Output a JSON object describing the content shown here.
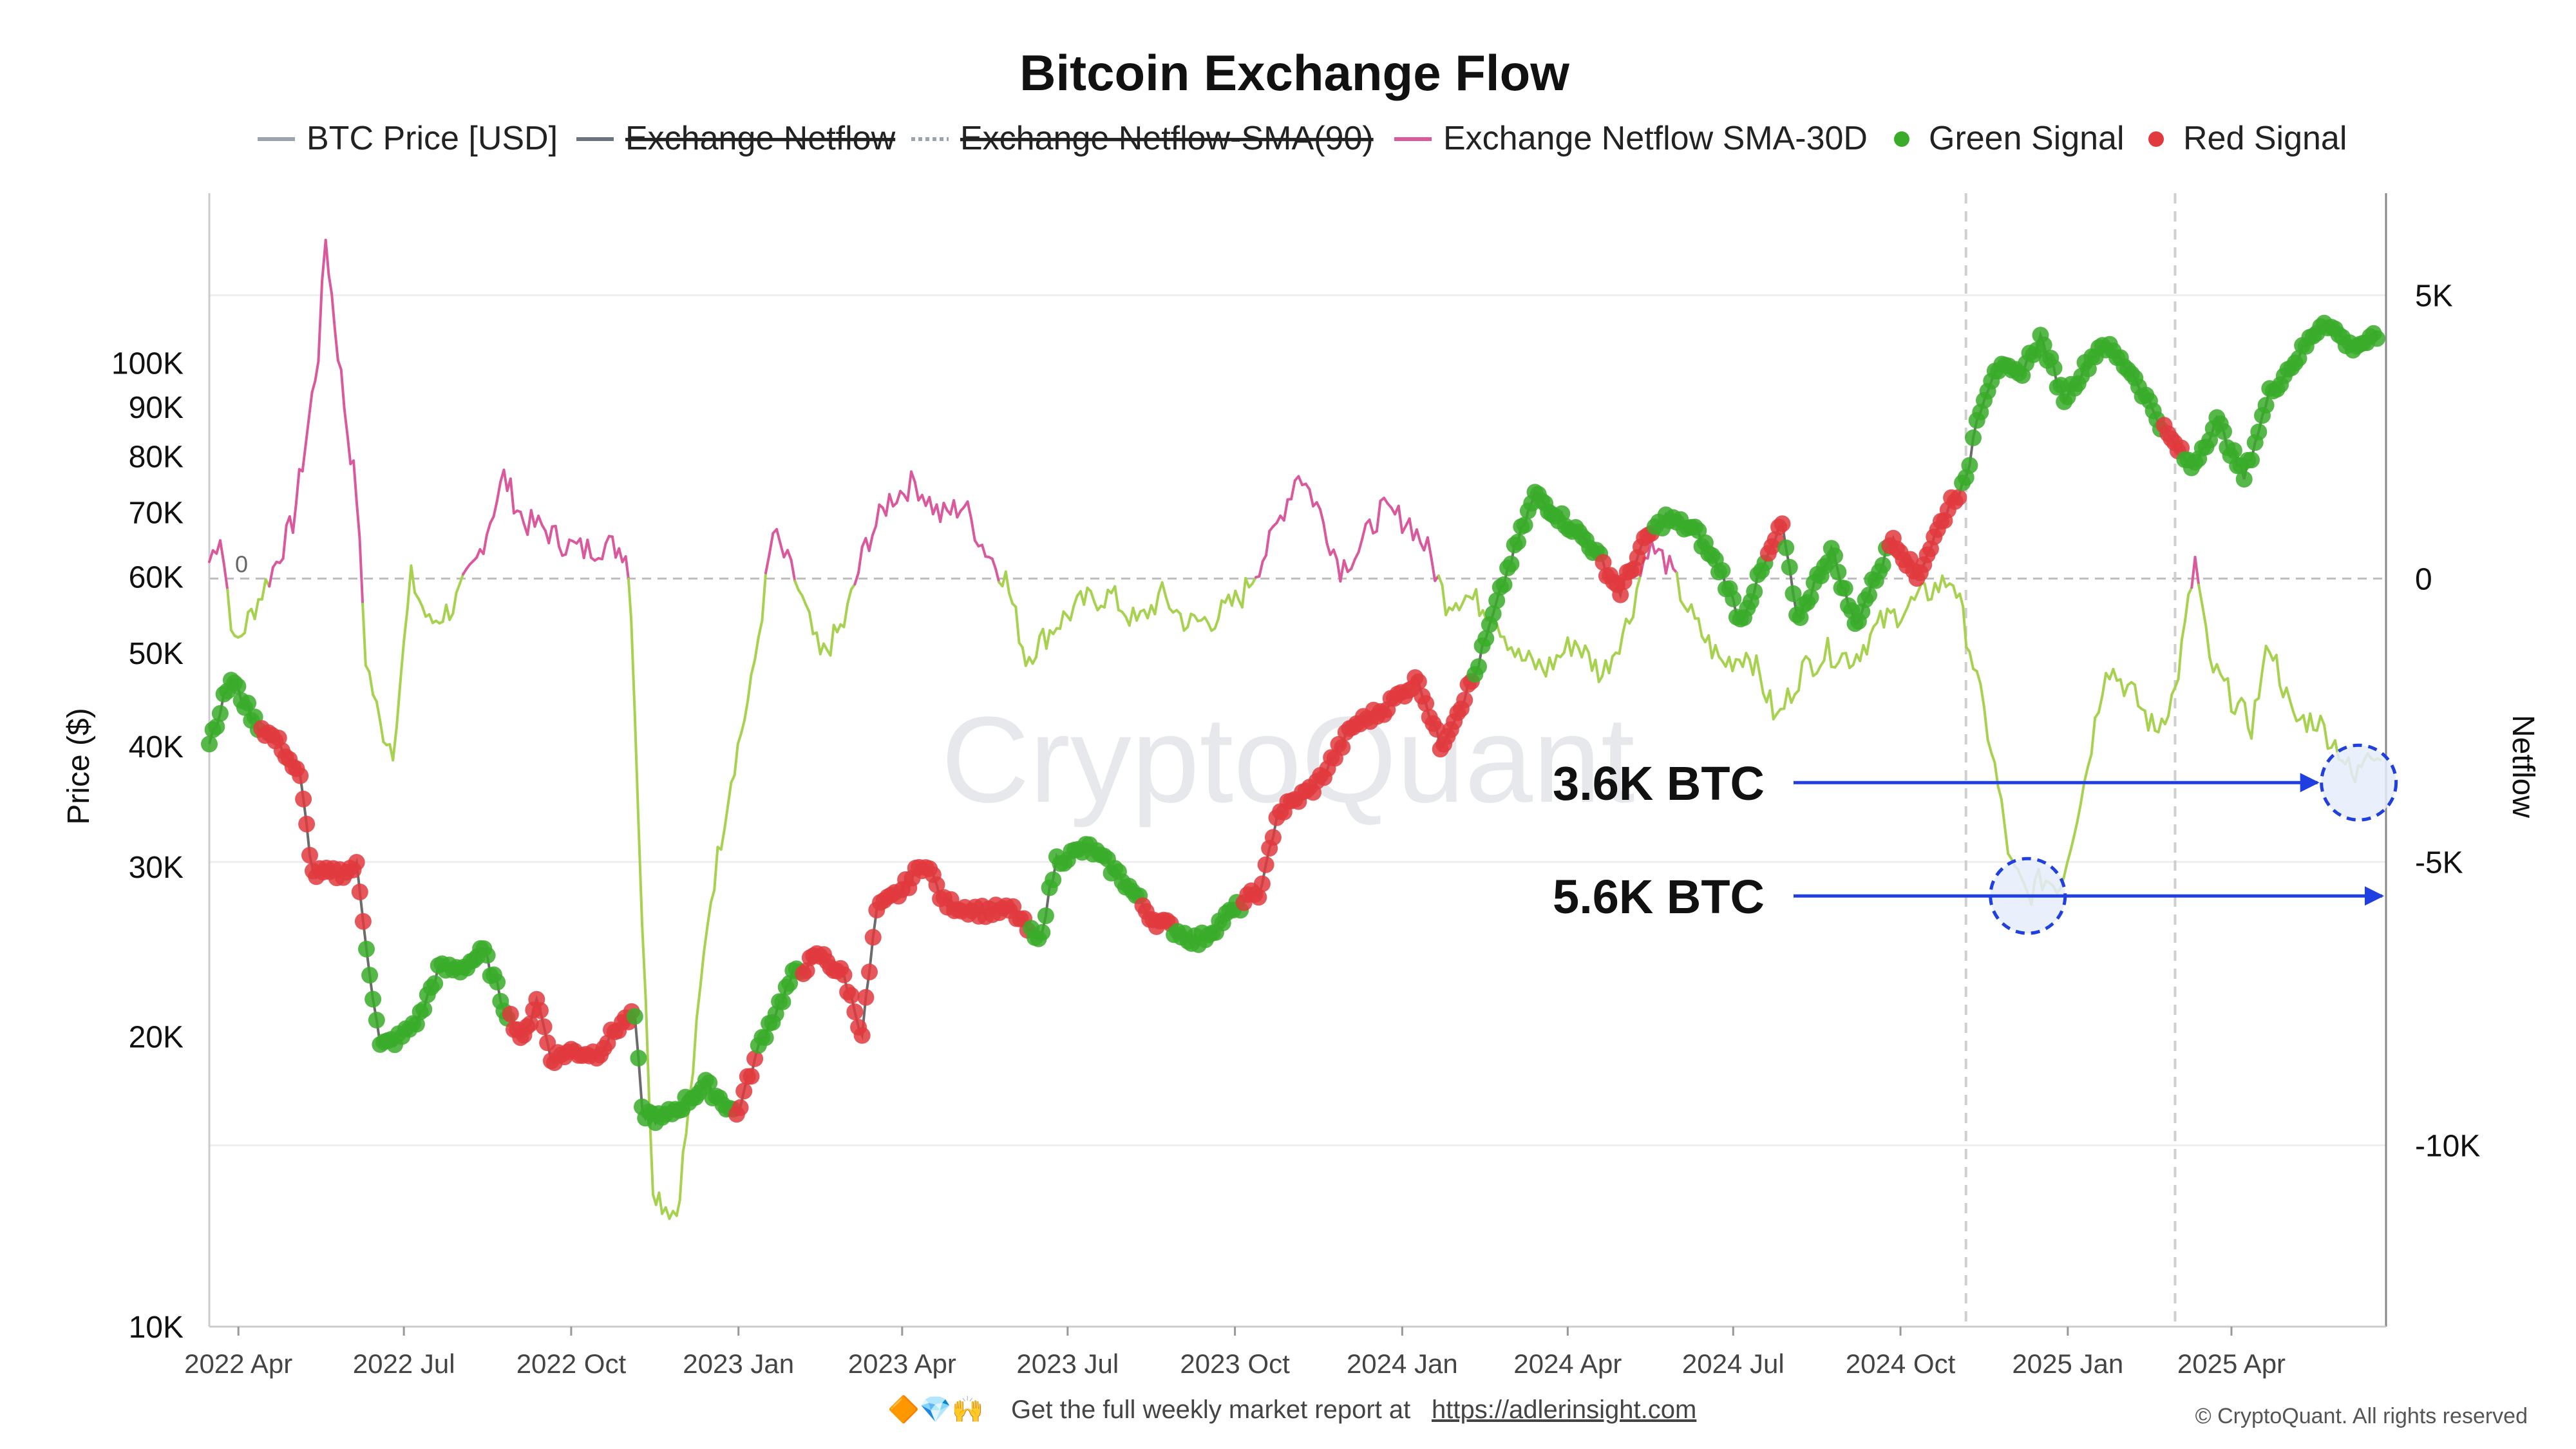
{
  "chart_data": {
    "type": "line",
    "title": "Bitcoin Exchange Flow",
    "watermark": "CryptoQuant",
    "legend": [
      {
        "label": "BTC Price [USD]",
        "color": "#9ca3af",
        "marker": "line",
        "hidden": false
      },
      {
        "label": "Exchange Netflow",
        "color": "#6b7280",
        "marker": "line",
        "hidden": true
      },
      {
        "label": "Exchange Netflow-SMA(90)",
        "color": "#9ca3af",
        "marker": "dashed",
        "hidden": true
      },
      {
        "label": "Exchange Netflow SMA-30D",
        "color": "#d9599c",
        "marker": "line",
        "hidden": false
      },
      {
        "label": "Green Signal",
        "color": "#3aab2a",
        "marker": "dot",
        "hidden": false
      },
      {
        "label": "Red Signal",
        "color": "#e0393e",
        "marker": "dot",
        "hidden": false
      }
    ],
    "xlim": [
      "2022-03-16",
      "2025-06-25"
    ],
    "x_ticks": [
      {
        "date": "2022-04-01",
        "label": "2022 Apr"
      },
      {
        "date": "2022-07-01",
        "label": "2022 Jul"
      },
      {
        "date": "2022-10-01",
        "label": "2022 Oct"
      },
      {
        "date": "2023-01-01",
        "label": "2023 Jan"
      },
      {
        "date": "2023-04-01",
        "label": "2023 Apr"
      },
      {
        "date": "2023-07-01",
        "label": "2023 Jul"
      },
      {
        "date": "2023-10-01",
        "label": "2023 Oct"
      },
      {
        "date": "2024-01-01",
        "label": "2024 Jan"
      },
      {
        "date": "2024-04-01",
        "label": "2024 Apr"
      },
      {
        "date": "2024-07-01",
        "label": "2024 Jul"
      },
      {
        "date": "2024-10-01",
        "label": "2024 Oct"
      },
      {
        "date": "2025-01-01",
        "label": "2025 Jan"
      },
      {
        "date": "2025-04-01",
        "label": "2025 Apr"
      }
    ],
    "y_left": {
      "label": "Price ($)",
      "scale": "log",
      "ylim": [
        10000,
        150000
      ],
      "ticks": [
        {
          "value": 10000,
          "label": "10K"
        },
        {
          "value": 20000,
          "label": "20K"
        },
        {
          "value": 30000,
          "label": "30K"
        },
        {
          "value": 40000,
          "label": "40K"
        },
        {
          "value": 50000,
          "label": "50K"
        },
        {
          "value": 60000,
          "label": "60K"
        },
        {
          "value": 70000,
          "label": "70K"
        },
        {
          "value": 80000,
          "label": "80K"
        },
        {
          "value": 90000,
          "label": "90K"
        },
        {
          "value": 100000,
          "label": "100K"
        }
      ]
    },
    "y_right": {
      "label": "Netflow",
      "scale": "linear",
      "ylim": [
        -13200,
        6800
      ],
      "ticks": [
        {
          "value": 5000,
          "label": "5K"
        },
        {
          "value": 0,
          "label": "0"
        },
        {
          "value": -5000,
          "label": "-5K"
        },
        {
          "value": -10000,
          "label": "-10K"
        }
      ],
      "zero_line_label": "0"
    },
    "series": [
      {
        "name": "BTC Price [USD]",
        "axis": "left",
        "points": [
          [
            "2022-03-16",
            40500
          ],
          [
            "2022-03-28",
            47000
          ],
          [
            "2022-04-10",
            42500
          ],
          [
            "2022-04-25",
            40000
          ],
          [
            "2022-05-05",
            37000
          ],
          [
            "2022-05-12",
            29500
          ],
          [
            "2022-05-25",
            29500
          ],
          [
            "2022-06-05",
            30000
          ],
          [
            "2022-06-14",
            22000
          ],
          [
            "2022-06-18",
            19500
          ],
          [
            "2022-06-30",
            20000
          ],
          [
            "2022-07-10",
            21000
          ],
          [
            "2022-07-20",
            23500
          ],
          [
            "2022-08-01",
            23500
          ],
          [
            "2022-08-14",
            24500
          ],
          [
            "2022-08-25",
            21500
          ],
          [
            "2022-09-05",
            19800
          ],
          [
            "2022-09-12",
            22000
          ],
          [
            "2022-09-20",
            19000
          ],
          [
            "2022-10-01",
            19300
          ],
          [
            "2022-10-15",
            19200
          ],
          [
            "2022-10-29",
            20700
          ],
          [
            "2022-11-05",
            21000
          ],
          [
            "2022-11-09",
            16700
          ],
          [
            "2022-11-20",
            16400
          ],
          [
            "2022-12-01",
            17000
          ],
          [
            "2022-12-14",
            17800
          ],
          [
            "2022-12-31",
            16600
          ],
          [
            "2023-01-14",
            19900
          ],
          [
            "2023-01-31",
            23100
          ],
          [
            "2023-02-15",
            24300
          ],
          [
            "2023-02-28",
            23100
          ],
          [
            "2023-03-10",
            20200
          ],
          [
            "2023-03-18",
            27000
          ],
          [
            "2023-04-01",
            28400
          ],
          [
            "2023-04-14",
            30400
          ],
          [
            "2023-04-24",
            27500
          ],
          [
            "2023-05-15",
            27000
          ],
          [
            "2023-06-01",
            27000
          ],
          [
            "2023-06-15",
            25000
          ],
          [
            "2023-06-25",
            30500
          ],
          [
            "2023-07-13",
            31400
          ],
          [
            "2023-07-31",
            29200
          ],
          [
            "2023-08-17",
            26500
          ],
          [
            "2023-09-11",
            25100
          ],
          [
            "2023-09-30",
            27000
          ],
          [
            "2023-10-16",
            28500
          ],
          [
            "2023-10-24",
            34000
          ],
          [
            "2023-11-15",
            36500
          ],
          [
            "2023-12-05",
            42000
          ],
          [
            "2023-12-20",
            43500
          ],
          [
            "2024-01-10",
            47000
          ],
          [
            "2024-01-22",
            40000
          ],
          [
            "2024-02-10",
            47500
          ],
          [
            "2024-02-28",
            61000
          ],
          [
            "2024-03-14",
            73000
          ],
          [
            "2024-03-25",
            70000
          ],
          [
            "2024-04-13",
            65000
          ],
          [
            "2024-04-30",
            58000
          ],
          [
            "2024-05-15",
            66000
          ],
          [
            "2024-05-25",
            69000
          ],
          [
            "2024-06-10",
            67000
          ],
          [
            "2024-06-25",
            60500
          ],
          [
            "2024-07-05",
            54000
          ],
          [
            "2024-07-28",
            68000
          ],
          [
            "2024-08-05",
            54000
          ],
          [
            "2024-08-24",
            64000
          ],
          [
            "2024-09-06",
            53500
          ],
          [
            "2024-09-27",
            66000
          ],
          [
            "2024-10-10",
            60000
          ],
          [
            "2024-10-29",
            72000
          ],
          [
            "2024-11-06",
            75000
          ],
          [
            "2024-11-12",
            88000
          ],
          [
            "2024-11-22",
            99000
          ],
          [
            "2024-12-05",
            97000
          ],
          [
            "2024-12-17",
            106000
          ],
          [
            "2024-12-30",
            92000
          ],
          [
            "2025-01-20",
            105000
          ],
          [
            "2025-02-05",
            98000
          ],
          [
            "2025-02-25",
            84000
          ],
          [
            "2025-03-10",
            78000
          ],
          [
            "2025-03-24",
            87000
          ],
          [
            "2025-04-08",
            76000
          ],
          [
            "2025-04-22",
            93000
          ],
          [
            "2025-05-10",
            103000
          ],
          [
            "2025-05-22",
            111000
          ],
          [
            "2025-06-05",
            104000
          ],
          [
            "2025-06-20",
            106000
          ]
        ]
      },
      {
        "name": "Exchange Netflow SMA-30D",
        "axis": "right",
        "points": [
          [
            "2022-03-16",
            300
          ],
          [
            "2022-03-22",
            800
          ],
          [
            "2022-03-30",
            -1200
          ],
          [
            "2022-04-10",
            -500
          ],
          [
            "2022-04-22",
            300
          ],
          [
            "2022-05-01",
            1000
          ],
          [
            "2022-05-08",
            2400
          ],
          [
            "2022-05-15",
            4000
          ],
          [
            "2022-05-19",
            6000
          ],
          [
            "2022-05-24",
            4500
          ],
          [
            "2022-05-31",
            2600
          ],
          [
            "2022-06-05",
            1500
          ],
          [
            "2022-06-10",
            -1400
          ],
          [
            "2022-06-18",
            -2600
          ],
          [
            "2022-06-25",
            -3000
          ],
          [
            "2022-07-05",
            0
          ],
          [
            "2022-07-15",
            -800
          ],
          [
            "2022-07-28",
            -500
          ],
          [
            "2022-08-10",
            300
          ],
          [
            "2022-08-25",
            1800
          ],
          [
            "2022-09-05",
            1000
          ],
          [
            "2022-09-15",
            900
          ],
          [
            "2022-09-28",
            600
          ],
          [
            "2022-10-08",
            500
          ],
          [
            "2022-10-20",
            600
          ],
          [
            "2022-10-31",
            500
          ],
          [
            "2022-11-03",
            -500
          ],
          [
            "2022-11-09",
            -6000
          ],
          [
            "2022-11-15",
            -10700
          ],
          [
            "2022-11-20",
            -11000
          ],
          [
            "2022-11-28",
            -11200
          ],
          [
            "2022-12-05",
            -9300
          ],
          [
            "2022-12-15",
            -6000
          ],
          [
            "2022-12-28",
            -3500
          ],
          [
            "2023-01-08",
            -1900
          ],
          [
            "2023-01-20",
            800
          ],
          [
            "2023-02-01",
            0
          ],
          [
            "2023-02-15",
            -1400
          ],
          [
            "2023-02-28",
            -800
          ],
          [
            "2023-03-12",
            600
          ],
          [
            "2023-03-25",
            1400
          ],
          [
            "2023-04-08",
            1700
          ],
          [
            "2023-04-22",
            1100
          ],
          [
            "2023-05-05",
            1300
          ],
          [
            "2023-05-15",
            600
          ],
          [
            "2023-05-28",
            0
          ],
          [
            "2023-06-08",
            -1400
          ],
          [
            "2023-06-25",
            -800
          ],
          [
            "2023-07-10",
            -400
          ],
          [
            "2023-07-25",
            -300
          ],
          [
            "2023-08-08",
            -800
          ],
          [
            "2023-08-22",
            -300
          ],
          [
            "2023-09-05",
            -800
          ],
          [
            "2023-09-20",
            -700
          ],
          [
            "2023-10-05",
            -300
          ],
          [
            "2023-10-20",
            600
          ],
          [
            "2023-11-05",
            1900
          ],
          [
            "2023-11-15",
            1300
          ],
          [
            "2023-11-28",
            200
          ],
          [
            "2023-12-08",
            500
          ],
          [
            "2023-12-20",
            1200
          ],
          [
            "2024-01-05",
            1000
          ],
          [
            "2024-01-15",
            500
          ],
          [
            "2024-01-25",
            -400
          ],
          [
            "2024-02-05",
            -300
          ],
          [
            "2024-02-20",
            -600
          ],
          [
            "2024-03-05",
            -1400
          ],
          [
            "2024-03-20",
            -1600
          ],
          [
            "2024-04-05",
            -1100
          ],
          [
            "2024-04-20",
            -1700
          ],
          [
            "2024-05-05",
            -700
          ],
          [
            "2024-05-15",
            600
          ],
          [
            "2024-05-25",
            300
          ],
          [
            "2024-06-10",
            -800
          ],
          [
            "2024-06-25",
            -1500
          ],
          [
            "2024-07-10",
            -1300
          ],
          [
            "2024-07-25",
            -2500
          ],
          [
            "2024-08-08",
            -1600
          ],
          [
            "2024-08-22",
            -1300
          ],
          [
            "2024-09-05",
            -1400
          ],
          [
            "2024-09-20",
            -800
          ],
          [
            "2024-10-05",
            -500
          ],
          [
            "2024-10-18",
            -200
          ],
          [
            "2024-10-30",
            0
          ],
          [
            "2024-11-08",
            -1200
          ],
          [
            "2024-11-20",
            -3000
          ],
          [
            "2024-12-01",
            -5100
          ],
          [
            "2024-12-10",
            -5600
          ],
          [
            "2024-12-18",
            -5300
          ],
          [
            "2024-12-28",
            -5400
          ],
          [
            "2025-01-10",
            -3600
          ],
          [
            "2025-01-22",
            -1500
          ],
          [
            "2025-02-05",
            -2000
          ],
          [
            "2025-02-18",
            -2700
          ],
          [
            "2025-03-01",
            -2000
          ],
          [
            "2025-03-12",
            300
          ],
          [
            "2025-03-20",
            -1500
          ],
          [
            "2025-04-01",
            -2100
          ],
          [
            "2025-04-12",
            -2600
          ],
          [
            "2025-04-22",
            -1100
          ],
          [
            "2025-05-05",
            -2500
          ],
          [
            "2025-05-18",
            -2500
          ],
          [
            "2025-05-30",
            -3000
          ],
          [
            "2025-06-08",
            -3600
          ],
          [
            "2025-06-15",
            -2900
          ],
          [
            "2025-06-22",
            -3200
          ]
        ]
      }
    ],
    "signal_colors": {
      "green": "#3aab2a",
      "red": "#e0393e"
    },
    "signal_segments": [
      {
        "color": "green",
        "from": "2022-03-16",
        "to": "2022-04-12"
      },
      {
        "color": "red",
        "from": "2022-04-12",
        "to": "2022-06-10"
      },
      {
        "color": "green",
        "from": "2022-06-10",
        "to": "2022-08-28"
      },
      {
        "color": "red",
        "from": "2022-08-28",
        "to": "2022-11-05"
      },
      {
        "color": "green",
        "from": "2022-11-05",
        "to": "2022-12-30"
      },
      {
        "color": "red",
        "from": "2022-12-30",
        "to": "2023-01-12"
      },
      {
        "color": "green",
        "from": "2023-01-12",
        "to": "2023-02-05"
      },
      {
        "color": "red",
        "from": "2023-02-05",
        "to": "2023-06-10"
      },
      {
        "color": "green",
        "from": "2023-06-10",
        "to": "2023-08-10"
      },
      {
        "color": "red",
        "from": "2023-08-10",
        "to": "2023-08-28"
      },
      {
        "color": "green",
        "from": "2023-08-28",
        "to": "2023-10-05"
      },
      {
        "color": "red",
        "from": "2023-10-05",
        "to": "2024-02-10"
      },
      {
        "color": "green",
        "from": "2024-02-10",
        "to": "2024-04-20"
      },
      {
        "color": "red",
        "from": "2024-04-20",
        "to": "2024-05-18"
      },
      {
        "color": "green",
        "from": "2024-05-18",
        "to": "2024-07-20"
      },
      {
        "color": "red",
        "from": "2024-07-20",
        "to": "2024-07-30"
      },
      {
        "color": "green",
        "from": "2024-07-30",
        "to": "2024-09-25"
      },
      {
        "color": "red",
        "from": "2024-09-25",
        "to": "2024-11-03"
      },
      {
        "color": "green",
        "from": "2024-11-03",
        "to": "2025-02-22"
      },
      {
        "color": "red",
        "from": "2025-02-22",
        "to": "2025-03-06"
      },
      {
        "color": "green",
        "from": "2025-03-06",
        "to": "2025-06-25"
      }
    ],
    "vertical_markers": [
      "2024-11-06",
      "2025-03-01"
    ],
    "annotations": [
      {
        "text": "3.6K BTC",
        "value": -3600,
        "date": "2025-06-10"
      },
      {
        "text": "5.6K BTC",
        "value": -5600,
        "date": "2024-12-10"
      }
    ]
  },
  "footer": {
    "emojis": "🔶💎🙌",
    "text": "Get the full weekly market report at",
    "link": "https://adlerinsight.com",
    "copyright": "© CryptoQuant. All rights reserved"
  }
}
